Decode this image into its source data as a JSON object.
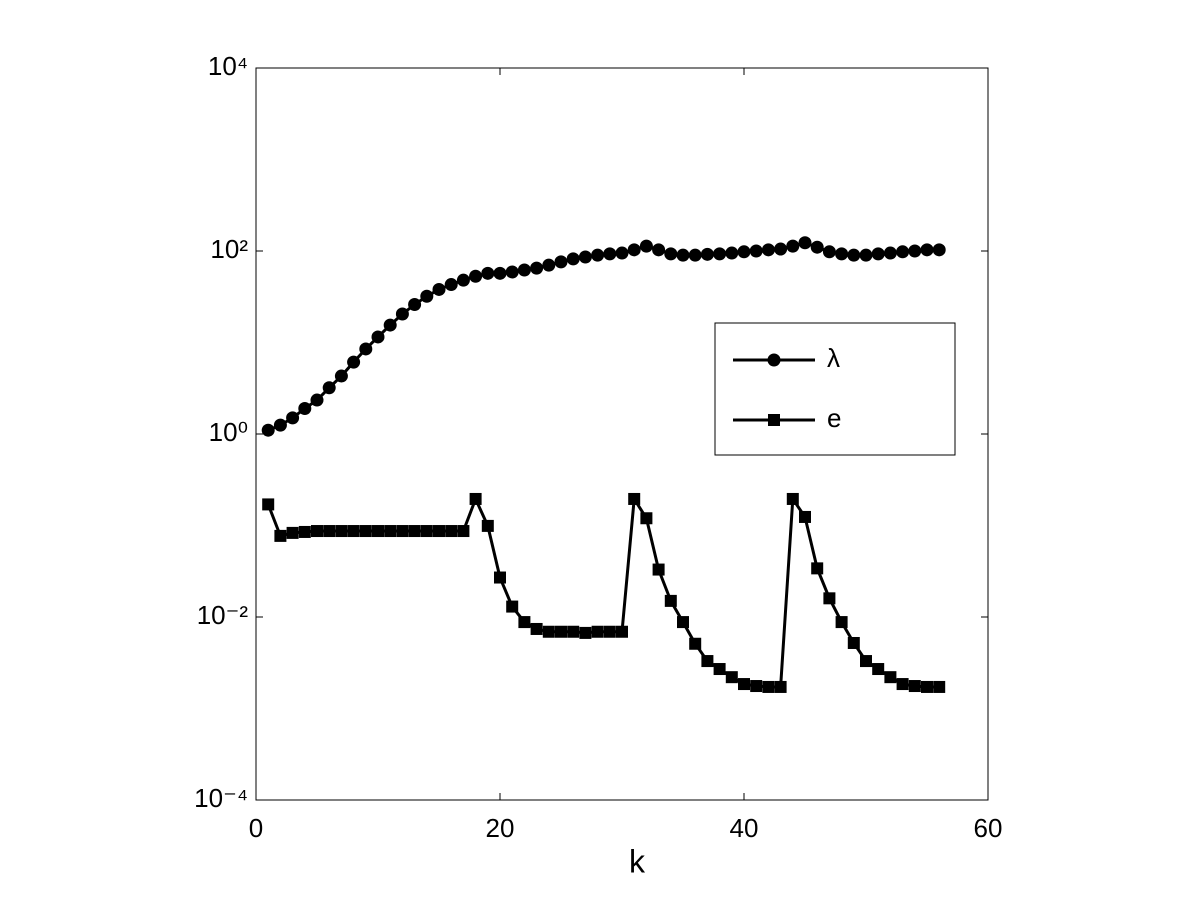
{
  "chart_data": {
    "type": "line",
    "xlabel": "k",
    "log_y": true,
    "legend": "east",
    "x": [
      1,
      2,
      3,
      4,
      5,
      6,
      7,
      8,
      9,
      10,
      11,
      12,
      13,
      14,
      15,
      16,
      17,
      18,
      19,
      20,
      21,
      22,
      23,
      24,
      25,
      26,
      27,
      28,
      29,
      30,
      31,
      32,
      33,
      34,
      35,
      36,
      37,
      38,
      39,
      40,
      41,
      42,
      43,
      44,
      45,
      46,
      47,
      48,
      49,
      50,
      51,
      52,
      53,
      54,
      55,
      56
    ],
    "series": [
      {
        "name": "λ",
        "color": "#000000",
        "marker": "circle",
        "values": [
          1.1,
          1.25,
          1.5,
          1.9,
          2.35,
          3.2,
          4.3,
          6.1,
          8.5,
          11.5,
          15.5,
          20.5,
          26,
          32,
          38,
          43,
          48,
          53,
          57,
          57,
          59,
          62,
          65,
          70,
          76,
          82,
          86,
          90,
          93,
          95,
          103,
          113,
          103,
          93,
          90,
          90,
          92,
          93,
          95,
          98,
          100,
          103,
          105,
          113,
          123,
          110,
          98,
          93,
          90,
          90,
          93,
          95,
          98,
          100,
          103,
          103
        ]
      },
      {
        "name": "e",
        "color": "#000000",
        "marker": "square",
        "values": [
          0.17,
          0.077,
          0.083,
          0.085,
          0.087,
          0.087,
          0.087,
          0.087,
          0.087,
          0.087,
          0.087,
          0.087,
          0.087,
          0.087,
          0.087,
          0.087,
          0.087,
          0.195,
          0.099,
          0.027,
          0.013,
          0.0088,
          0.0074,
          0.0069,
          0.0069,
          0.0069,
          0.0067,
          0.0069,
          0.0069,
          0.0069,
          0.195,
          0.12,
          0.033,
          0.015,
          0.0088,
          0.0051,
          0.0033,
          0.0027,
          0.0022,
          0.00185,
          0.00176,
          0.00172,
          0.00172,
          0.195,
          0.124,
          0.034,
          0.016,
          0.0088,
          0.0052,
          0.0033,
          0.0027,
          0.0022,
          0.00185,
          0.00176,
          0.00172,
          0.00172
        ]
      }
    ],
    "xlim": [
      0,
      60
    ],
    "xticks": [
      0,
      20,
      40,
      60
    ],
    "ylim": [
      0.0001,
      10000
    ],
    "yticks": [
      {
        "value": 0.0001,
        "label": "10⁻⁴"
      },
      {
        "value": 0.01,
        "label": "10⁻²"
      },
      {
        "value": 1,
        "label": "10⁰"
      },
      {
        "value": 100,
        "label": "10²"
      },
      {
        "value": 10000,
        "label": "10⁴"
      }
    ]
  }
}
